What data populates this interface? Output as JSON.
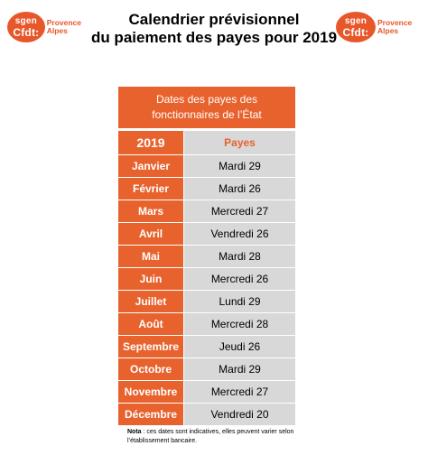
{
  "logo": {
    "top": "sgen",
    "bottom": "Cfdt:",
    "region_line1": "Provence",
    "region_line2": "Alpes"
  },
  "title": {
    "line1": "Calendrier prévisionnel",
    "line2": "du paiement des payes pour 2019"
  },
  "table": {
    "header_line1": "Dates des payes des",
    "header_line2": "fonctionnaires de l’État",
    "year": "2019",
    "payes_label": "Payes",
    "rows": [
      {
        "month": "Janvier",
        "date": "Mardi 29"
      },
      {
        "month": "Février",
        "date": "Mardi 26"
      },
      {
        "month": "Mars",
        "date": "Mercredi 27"
      },
      {
        "month": "Avril",
        "date": "Vendredi 26"
      },
      {
        "month": "Mai",
        "date": "Mardi 28"
      },
      {
        "month": "Juin",
        "date": "Mercredi 26"
      },
      {
        "month": "Juillet",
        "date": "Lundi 29"
      },
      {
        "month": "Août",
        "date": "Mercredi 28"
      },
      {
        "month": "Septembre",
        "date": "Jeudi 26"
      },
      {
        "month": "Octobre",
        "date": "Mardi 29"
      },
      {
        "month": "Novembre",
        "date": "Mercredi 27"
      },
      {
        "month": "Décembre",
        "date": "Vendredi 20"
      }
    ]
  },
  "note": {
    "label": "Nota",
    "text": " : ces dates sont indicatives, elles peuvent varier selon l’établissement bancaire."
  },
  "colors": {
    "accent": "#e8622d",
    "cell_gray": "#d8d8d8"
  }
}
